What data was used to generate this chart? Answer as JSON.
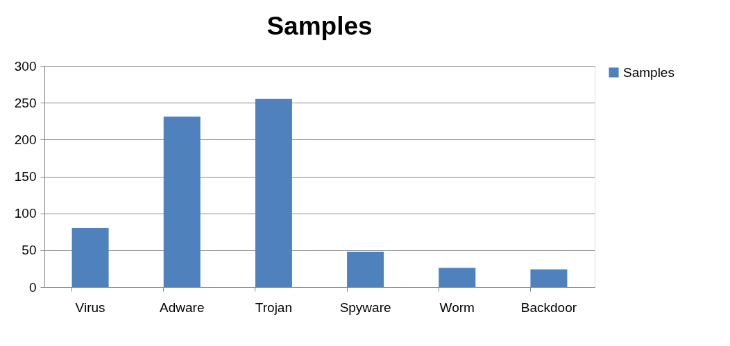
{
  "chart_data": {
    "type": "bar",
    "title": "Samples",
    "categories": [
      "Virus",
      "Adware",
      "Trojan",
      "Spyware",
      "Worm",
      "Backdoor"
    ],
    "series": [
      {
        "name": "Samples",
        "color": "#4f81bd",
        "values": [
          80,
          231,
          255,
          48,
          26,
          24
        ]
      }
    ],
    "ylim": [
      0,
      300
    ],
    "yticks": [
      0,
      50,
      100,
      150,
      200,
      250,
      300
    ],
    "grid": "y",
    "legend": "right"
  }
}
